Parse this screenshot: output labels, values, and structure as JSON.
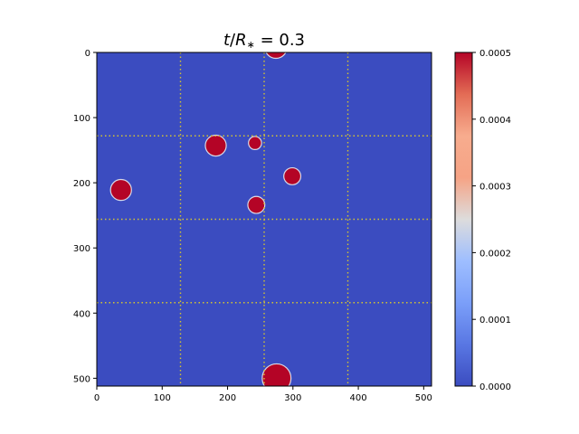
{
  "chart_data": {
    "type": "heatmap",
    "title_parts": {
      "t": "t",
      "slash": "/",
      "R": "R",
      "star": "∗",
      "rest": " = 0.3"
    },
    "xlim": [
      0,
      512
    ],
    "ylim": [
      512,
      0
    ],
    "x_ticks": [
      0,
      100,
      200,
      300,
      400,
      500
    ],
    "y_ticks": [
      0,
      100,
      200,
      300,
      400,
      500
    ],
    "grid_lines": [
      128,
      256,
      384
    ],
    "grid": "dotted",
    "background_value": 0.0,
    "blobs": [
      {
        "x": 274,
        "y": -8,
        "r": 17
      },
      {
        "x": 182,
        "y": 143,
        "r": 16
      },
      {
        "x": 242,
        "y": 139,
        "r": 10
      },
      {
        "x": 37,
        "y": 211,
        "r": 16
      },
      {
        "x": 299,
        "y": 190,
        "r": 13
      },
      {
        "x": 244,
        "y": 234,
        "r": 13
      },
      {
        "x": 275,
        "y": 500,
        "r": 22
      }
    ],
    "colorbar": {
      "colormap": "coolwarm",
      "range": [
        0.0,
        0.0005
      ],
      "ticks": [
        "0.0000",
        "0.0001",
        "0.0002",
        "0.0003",
        "0.0004",
        "0.0005"
      ]
    },
    "colors": {
      "low": "#3b4cc0",
      "high": "#b40426",
      "grid": "#d4c431"
    }
  }
}
